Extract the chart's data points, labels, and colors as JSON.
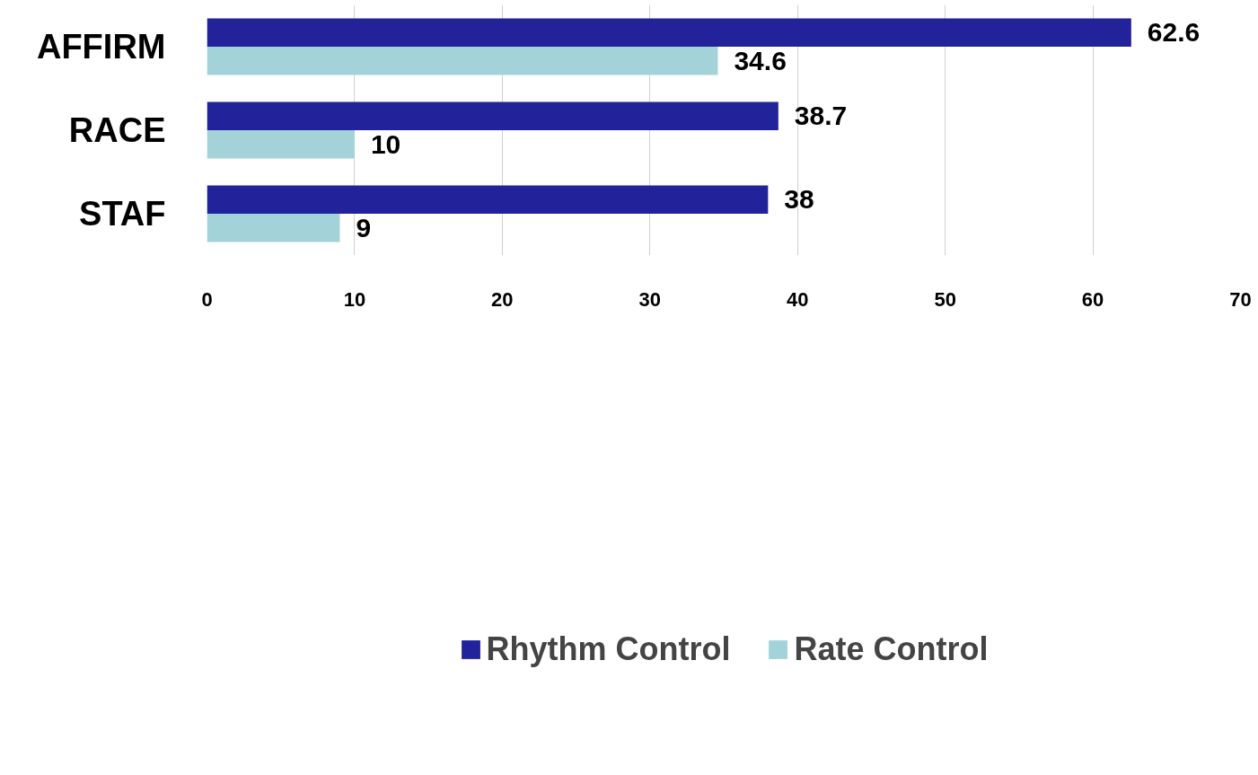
{
  "chart_data": {
    "type": "bar",
    "orientation": "horizontal",
    "categories": [
      "AFFIRM",
      "RACE",
      "STAF"
    ],
    "series": [
      {
        "name": "Rhythm Control",
        "color": "#22229a",
        "values": [
          62.6,
          38.7,
          38
        ]
      },
      {
        "name": "Rate Control",
        "color": "#a3d3d8",
        "values": [
          34.6,
          10,
          9
        ]
      }
    ],
    "xlim": [
      0,
      70
    ],
    "xticks": [
      0,
      10,
      20,
      30,
      40,
      50,
      60,
      70
    ],
    "grid": "x",
    "legend": "bottom",
    "data_labels": true
  }
}
